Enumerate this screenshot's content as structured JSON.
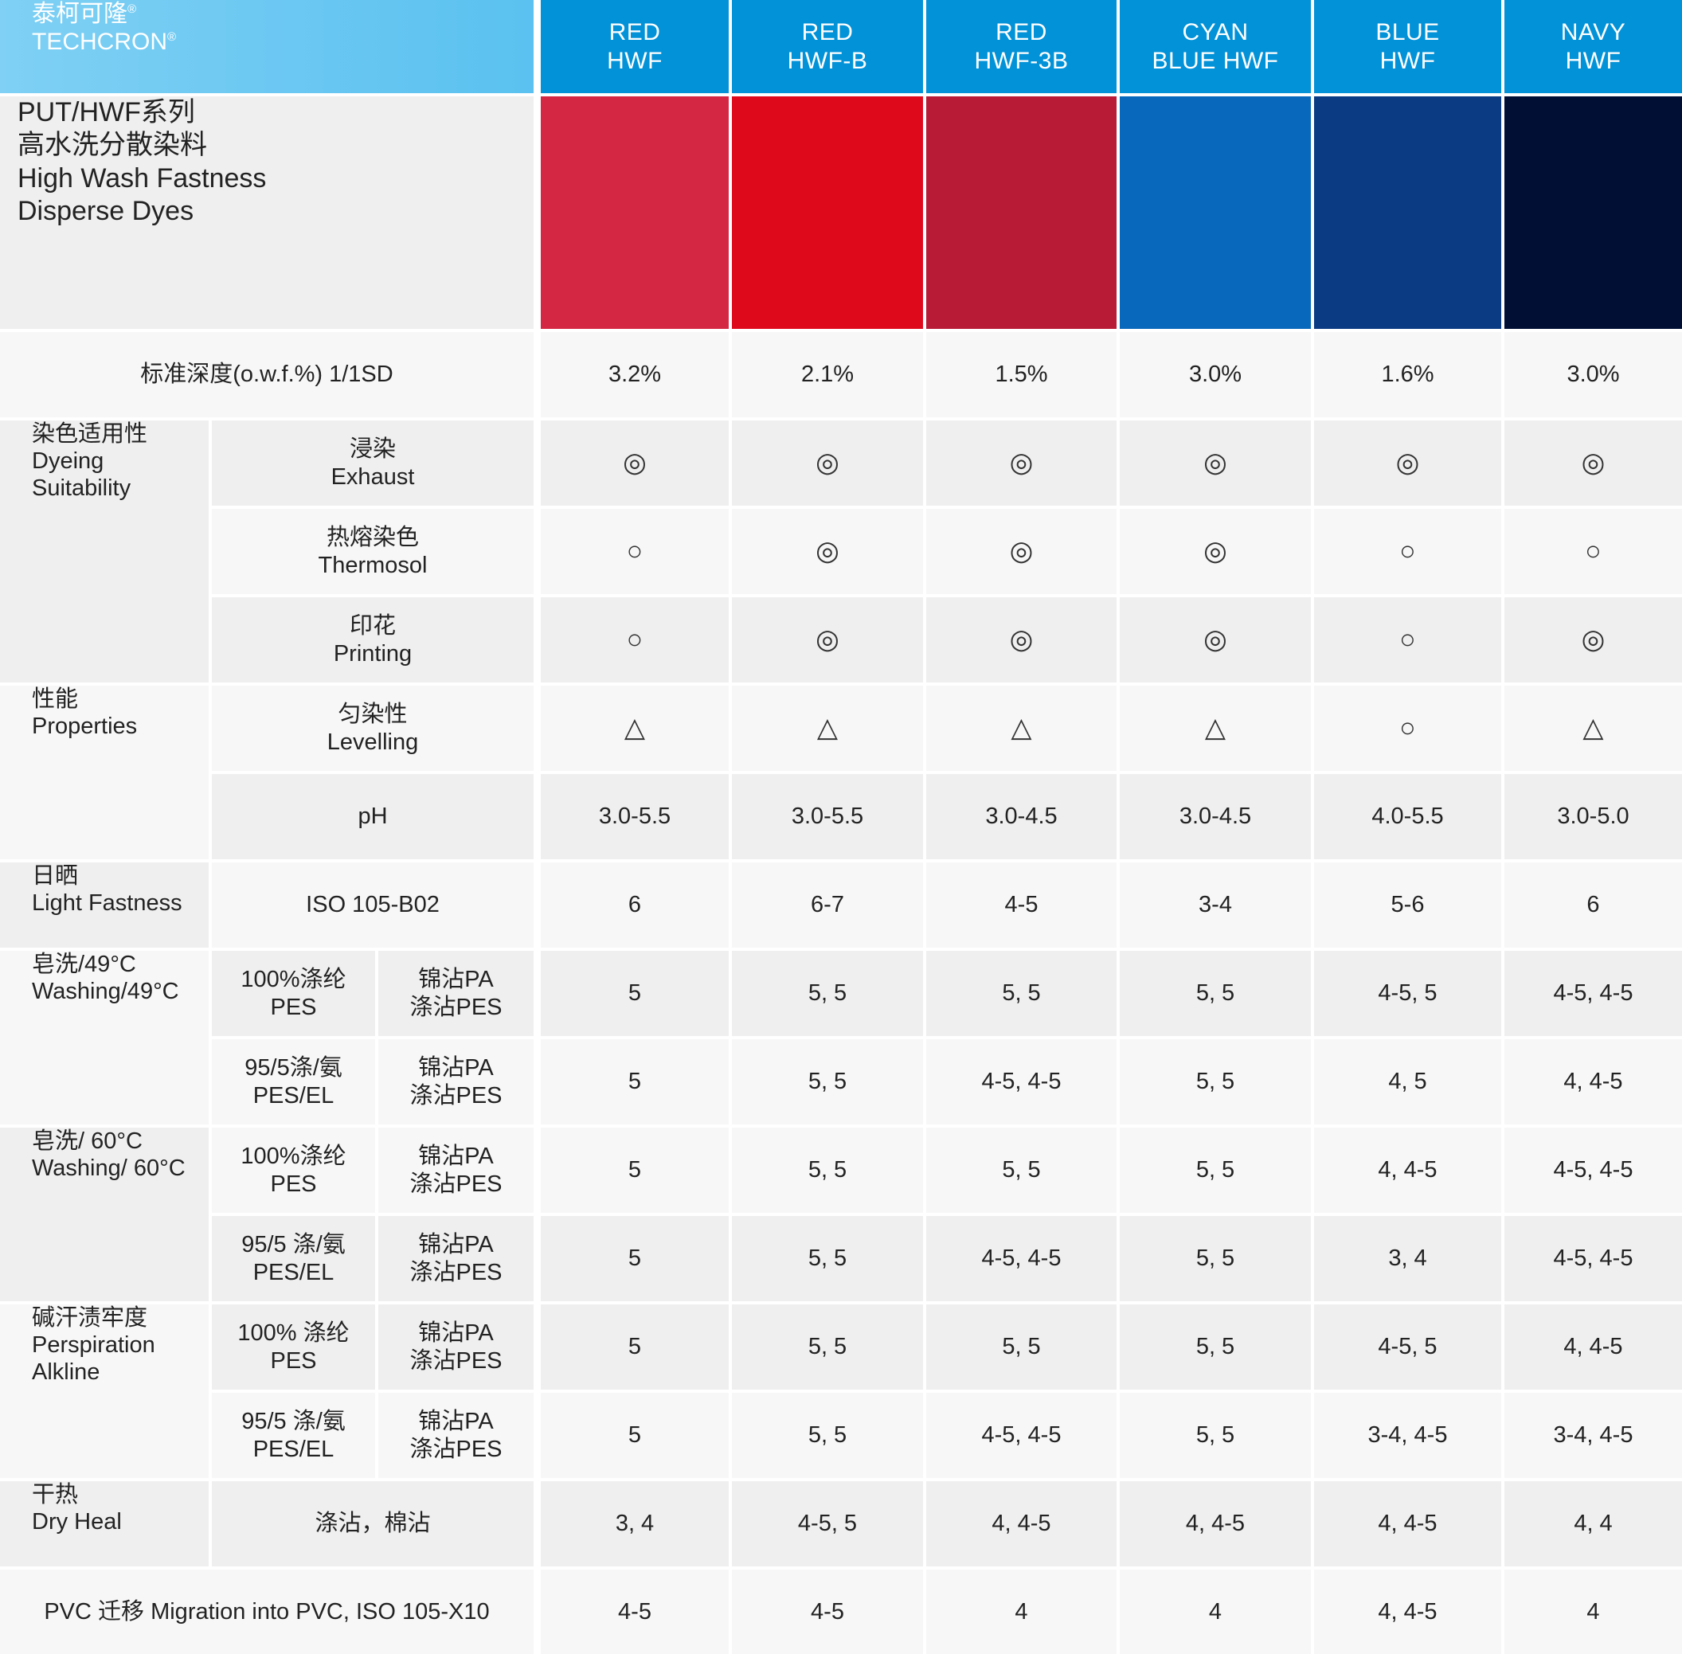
{
  "header": {
    "brand_cn": "泰柯可隆",
    "brand_en": "TECHCRON",
    "reg_mark": "®",
    "columns": [
      {
        "line1": "RED",
        "line2": "HWF",
        "swatch_color": "#d42744"
      },
      {
        "line1": "RED",
        "line2": "HWF-B",
        "swatch_color": "#de0a1c"
      },
      {
        "line1": "RED",
        "line2": "HWF-3B",
        "swatch_color": "#b81b36"
      },
      {
        "line1": "CYAN",
        "line2": "BLUE HWF",
        "swatch_color": "#0868bc"
      },
      {
        "line1": "BLUE",
        "line2": "HWF",
        "swatch_color": "#0b3b82"
      },
      {
        "line1": "NAVY",
        "line2": "HWF",
        "swatch_color": "#010f35"
      }
    ]
  },
  "title": {
    "line1": "PUT/HWF系列",
    "line2": "高水洗分散染料",
    "line3": "High Wash Fastness",
    "line4": "Disperse Dyes"
  },
  "depth": {
    "label": "标准深度(o.w.f.%) 1/1SD",
    "values": [
      "3.2%",
      "2.1%",
      "1.5%",
      "3.0%",
      "1.6%",
      "3.0%"
    ]
  },
  "dyeing": {
    "cn": "染色适用性",
    "en1": "Dyeing",
    "en2": "Suitability",
    "rows": [
      {
        "cn": "浸染",
        "en": "Exhaust",
        "values": [
          "◎",
          "◎",
          "◎",
          "◎",
          "◎",
          "◎"
        ]
      },
      {
        "cn": "热熔染色",
        "en": "Thermosol",
        "values": [
          "○",
          "◎",
          "◎",
          "◎",
          "○",
          "○"
        ]
      },
      {
        "cn": "印花",
        "en": "Printing",
        "values": [
          "○",
          "◎",
          "◎",
          "◎",
          "○",
          "◎"
        ]
      }
    ]
  },
  "properties": {
    "cn": "性能",
    "en": "Properties",
    "levelling": {
      "cn": "匀染性",
      "en": "Levelling",
      "values": [
        "△",
        "△",
        "△",
        "△",
        "○",
        "△"
      ]
    },
    "ph": {
      "label": "pH",
      "values": [
        "3.0-5.5",
        "3.0-5.5",
        "3.0-4.5",
        "3.0-4.5",
        "4.0-5.5",
        "3.0-5.0"
      ]
    }
  },
  "light": {
    "cn": "日晒",
    "en": "Light Fastness",
    "standard": "ISO 105-B02",
    "values": [
      "6",
      "6-7",
      "4-5",
      "3-4",
      "5-6",
      "6"
    ]
  },
  "wash49": {
    "cn": "皂洗/49°C",
    "en": "Washing/49°C",
    "rows": [
      {
        "sub_cn": "100%涤纶",
        "sub_en": "PES",
        "stain1": "锦沾PA",
        "stain2": "涤沾PES",
        "values": [
          "5",
          "5, 5",
          "5, 5",
          "5, 5",
          "4-5, 5",
          "4-5, 4-5"
        ]
      },
      {
        "sub_cn": "95/5涤/氨",
        "sub_en": "PES/EL",
        "stain1": "锦沾PA",
        "stain2": "涤沾PES",
        "values": [
          "5",
          "5, 5",
          "4-5, 4-5",
          "5, 5",
          "4, 5",
          "4, 4-5"
        ]
      }
    ]
  },
  "wash60": {
    "cn": "皂洗/ 60°C",
    "en": "Washing/ 60°C",
    "rows": [
      {
        "sub_cn": "100%涤纶",
        "sub_en": "PES",
        "stain1": "锦沾PA",
        "stain2": "涤沾PES",
        "values": [
          "5",
          "5, 5",
          "5, 5",
          "5, 5",
          "4, 4-5",
          "4-5, 4-5"
        ]
      },
      {
        "sub_cn": "95/5 涤/氨",
        "sub_en": "PES/EL",
        "stain1": "锦沾PA",
        "stain2": "涤沾PES",
        "values": [
          "5",
          "5, 5",
          "4-5, 4-5",
          "5, 5",
          "3, 4",
          "4-5, 4-5"
        ]
      }
    ]
  },
  "perspiration": {
    "cn": "碱汗渍牢度",
    "en1": "Perspiration",
    "en2": "Alkline",
    "rows": [
      {
        "sub_cn": "100% 涤纶",
        "sub_en": "PES",
        "stain1": "锦沾PA",
        "stain2": "涤沾PES",
        "values": [
          "5",
          "5, 5",
          "5, 5",
          "5, 5",
          "4-5, 5",
          "4, 4-5"
        ]
      },
      {
        "sub_cn": "95/5 涤/氨",
        "sub_en": "PES/EL",
        "stain1": "锦沾PA",
        "stain2": "涤沾PES",
        "values": [
          "5",
          "5, 5",
          "4-5, 4-5",
          "5, 5",
          "3-4, 4-5",
          "3-4, 4-5"
        ]
      }
    ]
  },
  "dryheat": {
    "cn": "干热",
    "en": "Dry Heal",
    "sub": "涤沾，棉沾",
    "values": [
      "3, 4",
      "4-5, 5",
      "4, 4-5",
      "4, 4-5",
      "4, 4-5",
      "4, 4"
    ]
  },
  "pvc": {
    "label": "PVC 迁移 Migration into PVC, ISO 105-X10",
    "values": [
      "4-5",
      "4-5",
      "4",
      "4",
      "4, 4-5",
      "4"
    ]
  }
}
